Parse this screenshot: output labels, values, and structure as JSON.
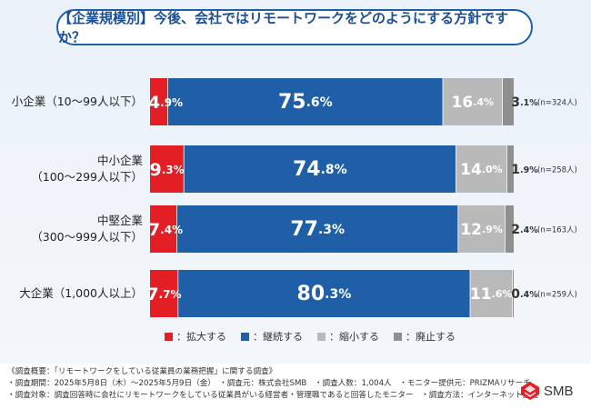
{
  "title": "【企業規模別】今後、会社ではリモートワークをどのようにする方針ですか？",
  "colors": {
    "expand": "#e31e25",
    "continue": "#1f5fa8",
    "shrink": "#b9b9b9",
    "abolish": "#8f8f8f",
    "title_border": "#1f5fa8"
  },
  "chart_data": {
    "type": "bar",
    "orientation": "horizontal",
    "stacked": true,
    "categories": [
      [
        "小企業（10〜99人以下）"
      ],
      [
        "中小企業",
        "（100〜299人以下）"
      ],
      [
        "中堅企業",
        "（300〜999人以下）"
      ],
      [
        "大企業（1,000人以上）"
      ]
    ],
    "sample_sizes": [
      "(n=324人)",
      "(n=258人)",
      "(n=163人)",
      "(n=259人)"
    ],
    "series": [
      {
        "name": "拡大する",
        "values": [
          4.9,
          9.3,
          7.4,
          7.7
        ]
      },
      {
        "name": "継続する",
        "values": [
          75.6,
          74.8,
          77.3,
          80.3
        ]
      },
      {
        "name": "縮小する",
        "values": [
          16.4,
          14.0,
          12.9,
          11.6
        ]
      },
      {
        "name": "廃止する",
        "values": [
          3.1,
          1.9,
          2.4,
          0.4
        ]
      }
    ],
    "legend_prefix": "：",
    "percent_suffix": "%",
    "xlim": [
      0,
      100
    ]
  },
  "footer": {
    "lines": [
      "《調査概要：「リモートワークをしている従業員の業務把握」に関する調査》",
      "・調査期間：2025年5月8日（木）〜2025年5月9日（金）　・調査元：株式会社SMB　・調査人数：1,004人　・モニター提供元：PRIZMAリサーチ",
      "・調査対象：調査回答時に会社にリモートワークをしている従業員がいる経営者・管理職であると回答したモニター　・調査方法：インターネット調査"
    ]
  },
  "logo": {
    "text": "SMB",
    "icon": "smb-logo-icon",
    "color": "#e31e25"
  }
}
